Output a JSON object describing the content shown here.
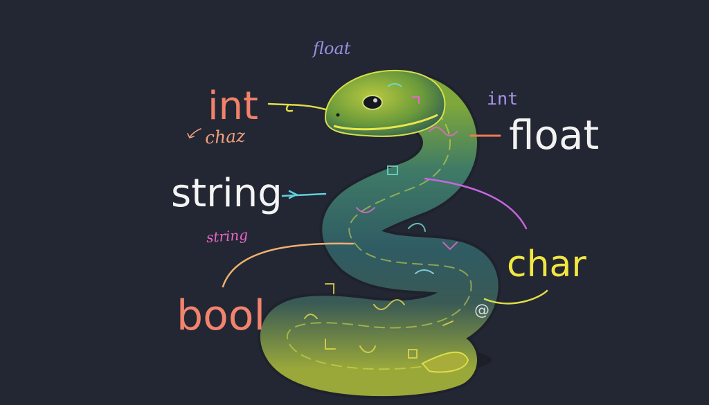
{
  "labels": {
    "int_large": "int",
    "float_large": "float",
    "string_large": "string",
    "char_large": "char",
    "bool_large": "bool",
    "float_small": "float",
    "int_small": "int",
    "char_small": "chaz",
    "string_small": "string",
    "at_symbol": "@"
  },
  "colors": {
    "background": "#232733",
    "int": "#f0826a",
    "float": "#f2f2f2",
    "string": "#f4f4f4",
    "char": "#f2e640",
    "bool": "#f2836d",
    "float_small": "#9a8fe0",
    "int_small": "#a995ee",
    "char_small": "#f0a07e",
    "string_small": "#e866c8",
    "snake_head": "#8fb83a",
    "snake_body": "#3c6a6a",
    "snake_tail": "#b0b33a"
  }
}
